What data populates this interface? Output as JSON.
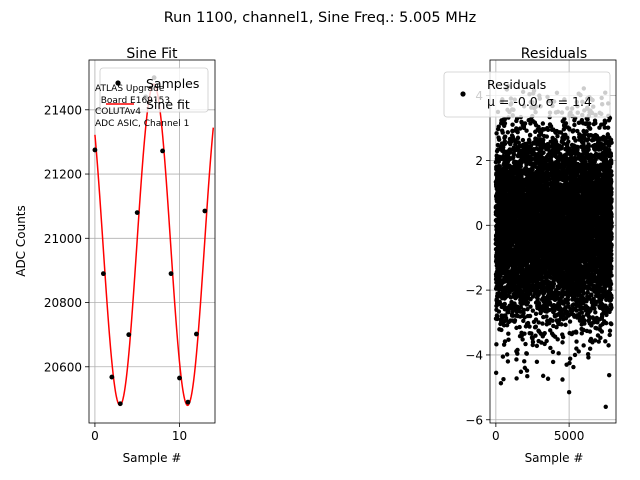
{
  "suptitle": "Run 1100, channel1, Sine Freq.: 5.005 MHz",
  "chart_data": [
    {
      "type": "scatter",
      "title": "Sine Fit",
      "xlabel": "Sample #",
      "ylabel": "ADC Counts",
      "xlim": [
        -0.7,
        14.2
      ],
      "ylim": [
        20425,
        21555
      ],
      "xticks": [
        0,
        10
      ],
      "yticks": [
        20600,
        20800,
        21000,
        21200,
        21400
      ],
      "grid": true,
      "legend_placement": "upper-right",
      "annotation": [
        "ATLAS Upgrade",
        "  Board E169153",
        "COLUTAv4",
        "ADC ASIC, Channel 1"
      ],
      "series": [
        {
          "name": "Samples",
          "kind": "points",
          "color": "#000000",
          "x": [
            0,
            1,
            2,
            3,
            4,
            5,
            6,
            7,
            8,
            9,
            10,
            11,
            12,
            13
          ],
          "y": [
            21275,
            20890,
            20568,
            20485,
            20700,
            21080,
            21440,
            21500,
            21272,
            20890,
            20565,
            20490,
            20702,
            21085
          ]
        },
        {
          "name": "Sine fit",
          "kind": "line",
          "color": "#ff0000",
          "fit": {
            "offset": 20980,
            "amplitude": 500,
            "period": 8.0,
            "phase_sample": 6.96
          }
        }
      ]
    },
    {
      "type": "scatter",
      "title": "Residuals",
      "xlabel": "Sample #",
      "ylabel": "",
      "xlim": [
        -400,
        8200
      ],
      "ylim": [
        -6.1,
        5.1
      ],
      "xticks": [
        0,
        5000
      ],
      "yticks": [
        -6,
        -4,
        -2,
        0,
        2,
        4
      ],
      "grid": true,
      "legend_placement": "upper-right",
      "series": [
        {
          "name": "Residuals",
          "color": "#000000",
          "n_points": 8000,
          "mean": 0.0,
          "std": 1.4,
          "x_range": [
            0,
            7900
          ],
          "outliers": [
            {
              "x": 7500,
              "y": -5.6
            },
            {
              "x": 5000,
              "y": -5.15
            },
            {
              "x": 20,
              "y": -4.55
            }
          ]
        }
      ],
      "stats_label": "μ = -0.0, σ = 1.4"
    }
  ]
}
